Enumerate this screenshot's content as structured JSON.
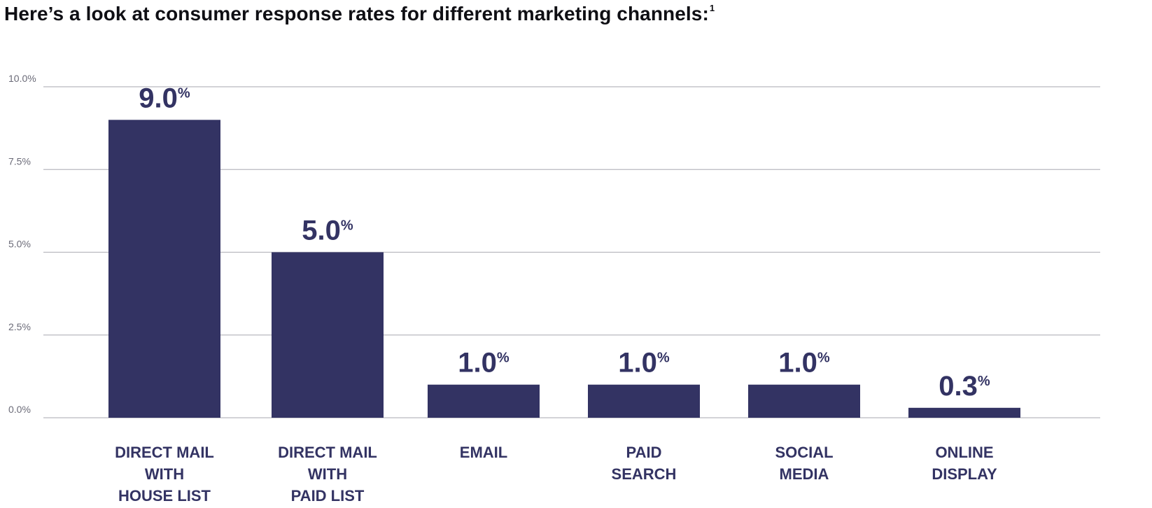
{
  "page": {
    "title": "Here’s a look at consumer response rates for different marketing channels:",
    "title_footnote": "1"
  },
  "chart_data": {
    "type": "bar",
    "title": "Here’s a look at consumer response rates for different marketing channels:",
    "categories": [
      "DIRECT MAIL WITH HOUSE LIST",
      "DIRECT MAIL WITH PAID LIST",
      "EMAIL",
      "PAID SEARCH",
      "SOCIAL MEDIA",
      "ONLINE DISPLAY"
    ],
    "category_lines": [
      [
        "DIRECT MAIL",
        "WITH",
        "HOUSE LIST"
      ],
      [
        "DIRECT MAIL",
        "WITH",
        "PAID LIST"
      ],
      [
        "EMAIL"
      ],
      [
        "PAID",
        "SEARCH"
      ],
      [
        "SOCIAL",
        "MEDIA"
      ],
      [
        "ONLINE",
        "DISPLAY"
      ]
    ],
    "values": [
      9.0,
      5.0,
      1.0,
      1.0,
      1.0,
      0.3
    ],
    "data_labels": [
      "9.0",
      "5.0",
      "1.0",
      "1.0",
      "1.0",
      "0.3"
    ],
    "data_label_unit": "%",
    "yticks": [
      {
        "value": 0.0,
        "label": "0.0%"
      },
      {
        "value": 2.5,
        "label": "2.5%"
      },
      {
        "value": 5.0,
        "label": "5.0%"
      },
      {
        "value": 7.5,
        "label": "7.5%"
      },
      {
        "value": 10.0,
        "label": "10.0%"
      }
    ],
    "ylim": [
      0,
      10
    ],
    "xlabel": "",
    "ylabel": "",
    "grid": true,
    "legend": "none",
    "colors": {
      "bar": "#333363",
      "grid": "#b9b9bf",
      "text": "#333363",
      "tick_text": "#6b6b78"
    }
  }
}
